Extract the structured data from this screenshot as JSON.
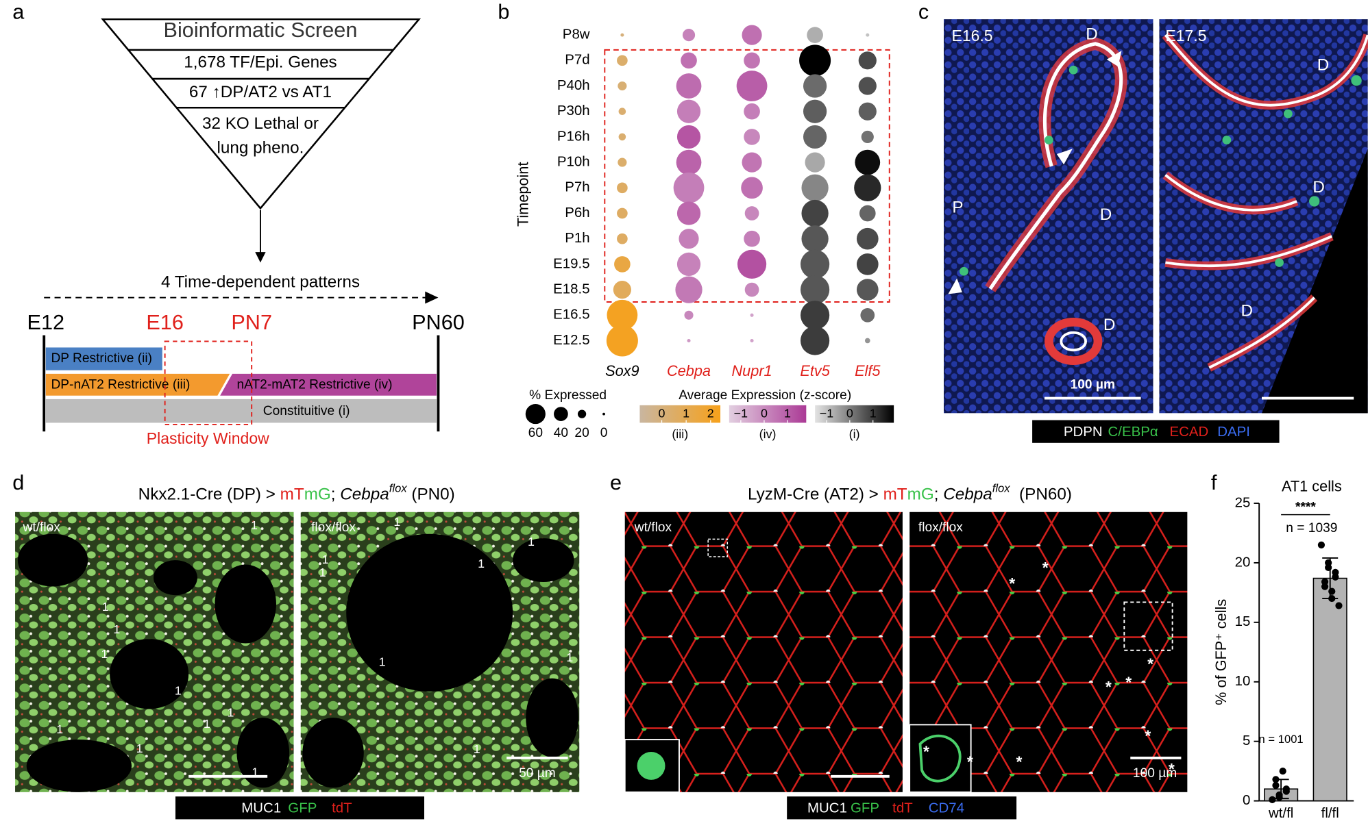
{
  "panel_labels": [
    "a",
    "b",
    "c",
    "d",
    "e",
    "f"
  ],
  "screen": {
    "title": "Bioinformatic Screen",
    "funnel": [
      "1,678 TF/Epi. Genes",
      "67 ↑DP/AT2 vs AT1",
      "32 KO Lethal or",
      "lung pheno."
    ],
    "arrow_label": "4 Time-dependent patterns",
    "timepoints": [
      "E12",
      "E16",
      "PN7",
      "PN60"
    ],
    "patterns": [
      "DP Restrictive (ii)",
      "DP-nAT2 Restrictive (iii)",
      "nAT2-mAT2 Restrictive (iv)",
      "Constituitive (i)"
    ],
    "window": "Plasticity Window"
  },
  "chart_data": [
    {
      "type": "dot",
      "y_label": "Timepoint",
      "categories": [
        "P8w",
        "P7d",
        "P40h",
        "P30h",
        "P16h",
        "P10h",
        "P7h",
        "P6h",
        "P1h",
        "E19.5",
        "E18.5",
        "E16.5",
        "E12.5"
      ],
      "series": [
        {
          "name": "Sox9",
          "color": "#000000",
          "scale": 0,
          "values": [
            3,
            28,
            22,
            16,
            16,
            22,
            28,
            28,
            28,
            47,
            53,
            97,
            100
          ],
          "z": [
            0,
            0.4,
            0.2,
            0.3,
            0.3,
            0.4,
            0.6,
            0.6,
            0.6,
            1.4,
            0.8,
            2.2,
            2.2
          ]
        },
        {
          "name": "Cebpa",
          "color": "#e0201b",
          "scale": 1,
          "values": [
            34,
            47,
            78,
            72,
            72,
            78,
            97,
            72,
            60,
            72,
            84,
            22,
            3
          ],
          "z": [
            0.2,
            0.6,
            0.7,
            0.3,
            1.2,
            0.9,
            0.3,
            0.8,
            0.3,
            0.2,
            0.4,
            0.1,
            -0.3
          ]
        },
        {
          "name": "Nupr1",
          "color": "#e0201b",
          "scale": 1,
          "values": [
            60,
            47,
            97,
            47,
            47,
            60,
            66,
            40,
            47,
            91,
            40,
            3,
            3
          ],
          "z": [
            0.6,
            0.5,
            1.0,
            0.3,
            0.1,
            0.5,
            0.6,
            0.1,
            0.3,
            1.3,
            0.1,
            -0.5,
            -0.5
          ]
        },
        {
          "name": "Etv5",
          "color": "#e0201b",
          "scale": 2,
          "values": [
            47,
            100,
            72,
            72,
            72,
            60,
            84,
            84,
            84,
            91,
            91,
            91,
            91
          ],
          "z": [
            -0.7,
            1.9,
            0.3,
            0.5,
            0.4,
            -0.6,
            -0.1,
            0.9,
            0.6,
            0.6,
            0.6,
            1.0,
            1.0
          ]
        },
        {
          "name": "Elf5",
          "color": "#e0201b",
          "scale": 2,
          "values": [
            3,
            53,
            53,
            53,
            34,
            78,
            84,
            47,
            66,
            66,
            66,
            40,
            9
          ],
          "z": [
            -1,
            0.8,
            0.7,
            0.5,
            0.2,
            1.7,
            1.3,
            0.4,
            0.8,
            0.9,
            0.6,
            0.3,
            -0.3
          ]
        }
      ],
      "size_legend": {
        "title": "% Expressed",
        "values": [
          60,
          40,
          20,
          0
        ]
      },
      "color_legend_title": "Average Expression (z-score)",
      "color_scales": [
        {
          "name": "(iii)",
          "lim": [
            -0.9,
            2.4
          ],
          "ticks": [
            0,
            1,
            2
          ],
          "colors": [
            "#c9b6a0",
            "#f7a11a"
          ]
        },
        {
          "name": "(iv)",
          "lim": [
            -1.5,
            1.8
          ],
          "ticks": [
            {
              "value": -1,
              "label": "−1"
            },
            0,
            1
          ],
          "colors": [
            "#e2cfe0",
            "#ab3a96"
          ]
        },
        {
          "name": "(i)",
          "lim": [
            -1.5,
            1.9
          ],
          "ticks": [
            {
              "value": -1,
              "label": "−1"
            },
            0,
            1
          ],
          "colors": [
            "#e4e4e4",
            "#000000"
          ]
        }
      ]
    },
    {
      "type": "bar",
      "title": "AT1 cells",
      "y_label": "% of GFP⁺ cells",
      "categories": [
        "wt/fl",
        "fl/fl"
      ],
      "values": [
        1.0,
        18.7
      ],
      "errors": [
        0.8,
        1.7
      ],
      "points": [
        [
          0.1,
          0.3,
          0.5,
          0.8,
          1.0,
          1.3,
          1.8,
          2.5
        ],
        [
          21.5,
          20.0,
          19.6,
          19.2,
          18.8,
          18.4,
          18.0,
          17.6,
          17.0,
          16.4
        ]
      ],
      "n_labels": [
        "n = 1001",
        "n = 1039"
      ],
      "significance": "****",
      "color": "#b3b3b3",
      "ylim": [
        0,
        25
      ],
      "yticks": [
        0,
        5,
        10,
        15,
        20,
        25
      ]
    }
  ],
  "panel_c": {
    "stages": [
      "E16.5",
      "E17.5"
    ],
    "annotations": [
      "D",
      "D",
      "P",
      "D",
      "D",
      "D",
      "D"
    ],
    "scale_bar": "100 µm",
    "channels": [
      {
        "name": "PDPN",
        "color": "#ffffff"
      },
      {
        "name": "C/EBPα",
        "color": "#39c24a"
      },
      {
        "name": "ECAD",
        "color": "#e0201b"
      },
      {
        "name": "DAPI",
        "color": "#3a6cf0"
      }
    ]
  },
  "panel_d": {
    "title_parts": [
      "Nkx2.1-Cre (DP) > ",
      "mT",
      "mG",
      "; ",
      "Cebpa",
      "flox",
      " (PN0)"
    ],
    "genotypes": [
      "wt/flox",
      "flox/flox"
    ],
    "annotations": [
      "1",
      "1",
      "1",
      "1",
      "1",
      "1",
      "1",
      "1",
      "1",
      "1",
      "1",
      "1",
      "1",
      "1",
      "1",
      "1",
      "1",
      "1"
    ],
    "scale_bar": "50 µm",
    "channels": [
      {
        "name": "MUC1",
        "color": "#ffffff"
      },
      {
        "name": "GFP",
        "color": "#39c24a"
      },
      {
        "name": "tdT",
        "color": "#e0201b"
      }
    ]
  },
  "panel_e": {
    "title_parts": [
      "LyzM-Cre (AT2) > ",
      "mT",
      "mG",
      "; ",
      "Cebpa",
      "flox",
      "  (PN60)"
    ],
    "genotypes": [
      "wt/flox",
      "flox/flox"
    ],
    "annotations": [
      "*",
      "*",
      "*",
      "*",
      "*",
      "*",
      "*",
      "*",
      "*",
      "*"
    ],
    "scale_bar": "100 µm",
    "channels": [
      {
        "name": "MUC1",
        "color": "#ffffff"
      },
      {
        "name": "GFP",
        "color": "#39c24a"
      },
      {
        "name": "tdT",
        "color": "#e0201b"
      },
      {
        "name": "CD74",
        "color": "#3a6cf0"
      }
    ]
  }
}
